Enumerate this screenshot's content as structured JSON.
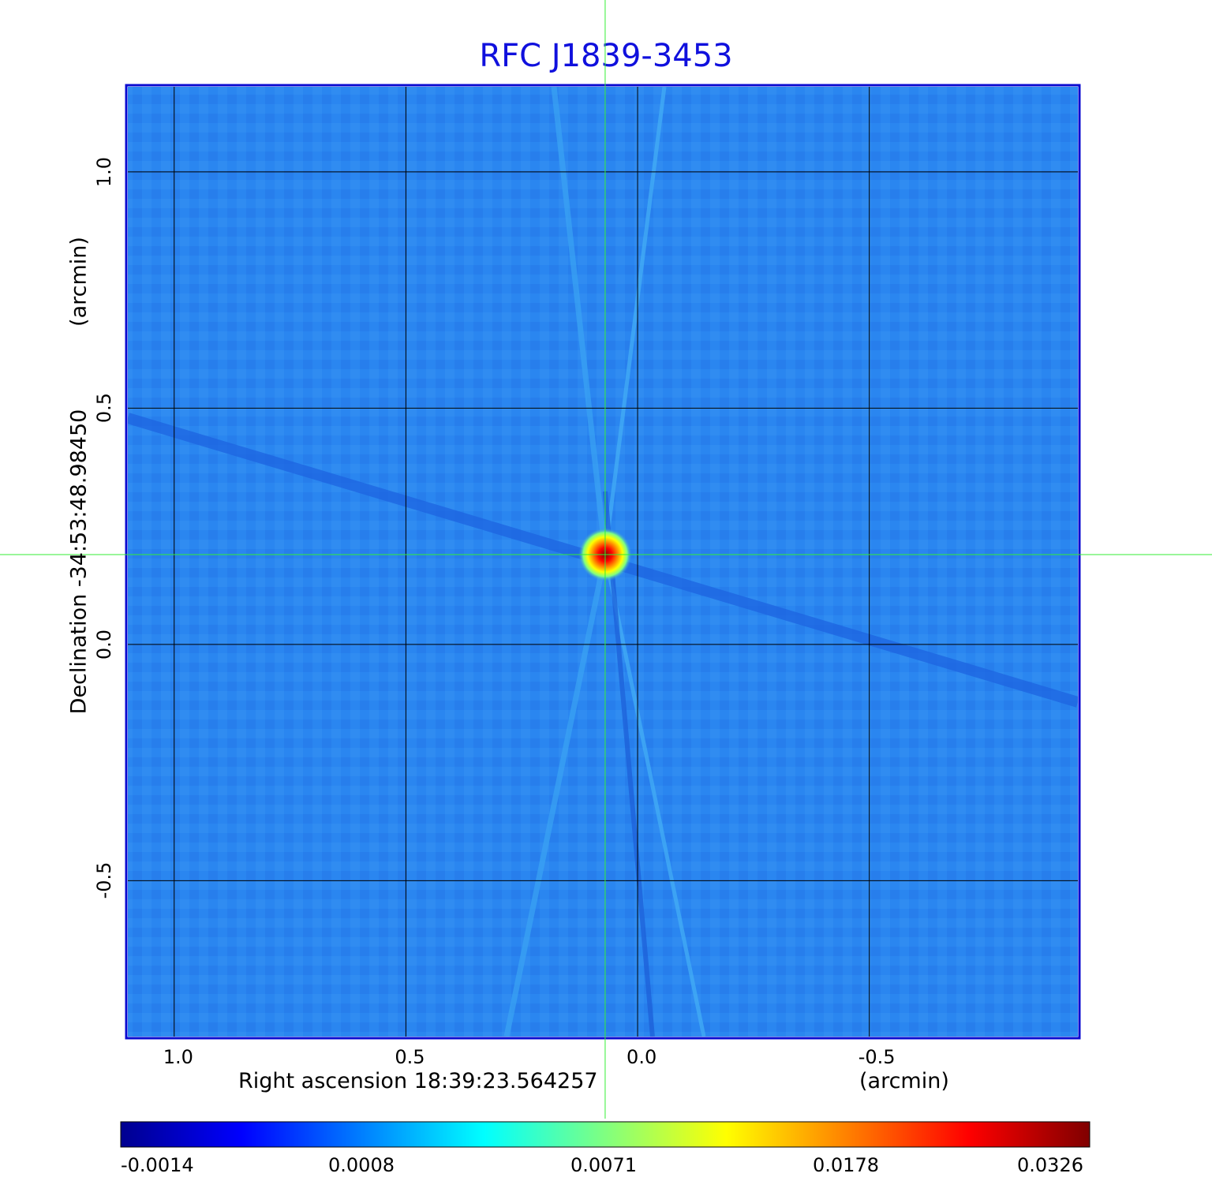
{
  "title": "RFC J1839-3453",
  "chart_data": {
    "type": "heatmap",
    "title": "RFC J1839-3453",
    "xlabel": "Right ascension  18:39:23.564257",
    "xunit": "(arcmin)",
    "ylabel": "Declination  -34:53:48.98450",
    "yunit": "(arcmin)",
    "xlim": [
      1.1,
      -0.95
    ],
    "ylim": [
      -0.83,
      1.18
    ],
    "x_ticks": [
      "1.0",
      "0.5",
      "0.0",
      "-0.5"
    ],
    "x_tick_values": [
      1.0,
      0.5,
      0.0,
      -0.5
    ],
    "y_ticks": [
      "1.0",
      "0.5",
      "0.0",
      "-0.5"
    ],
    "y_tick_values": [
      1.0,
      0.5,
      0.0,
      -0.5
    ],
    "grid": true,
    "source_peak": {
      "x": 0.07,
      "y": 0.19,
      "value": 0.0326
    },
    "crosshair": {
      "x": 0.07,
      "y": 0.19
    },
    "colorbar": {
      "tick_labels": [
        "-0.0014",
        "0.0008",
        "0.0071",
        "0.0178",
        "0.0326"
      ],
      "colors": [
        "#00008f",
        "#0000ff",
        "#0080ff",
        "#00ffff",
        "#80ff80",
        "#ffff00",
        "#ff8000",
        "#ff0000",
        "#800000"
      ]
    }
  },
  "colors": {
    "title": "#1010dd",
    "frame": "#0a0ad0",
    "background_map": "#2a86f0",
    "grid": "#000000",
    "crosshair": "#33ee33"
  }
}
